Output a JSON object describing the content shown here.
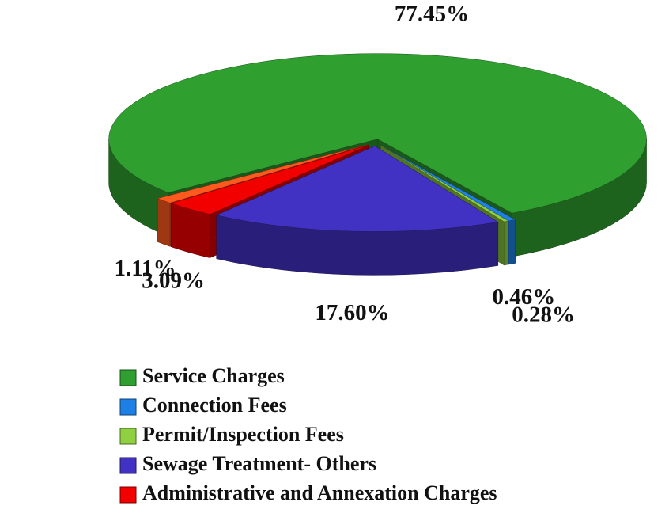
{
  "chart_data": {
    "type": "pie",
    "categories": [
      "Service Charges",
      "Connection Fees",
      "Permit/Inspection Fees",
      "Sewage Treatment- Others",
      "Administrative and Annexation Charges",
      null
    ],
    "values": [
      77.45,
      0.46,
      0.28,
      17.6,
      3.09,
      1.11
    ],
    "value_labels": [
      "77.45%",
      "0.46%",
      "0.28%",
      "17.60%",
      "3.09%",
      "1.11%"
    ],
    "colors": [
      "#2f9f2f",
      "#1e7fe6",
      "#8fd040",
      "#4232c4",
      "#f20000",
      "#ff5a1e"
    ],
    "legend": "bottom"
  }
}
